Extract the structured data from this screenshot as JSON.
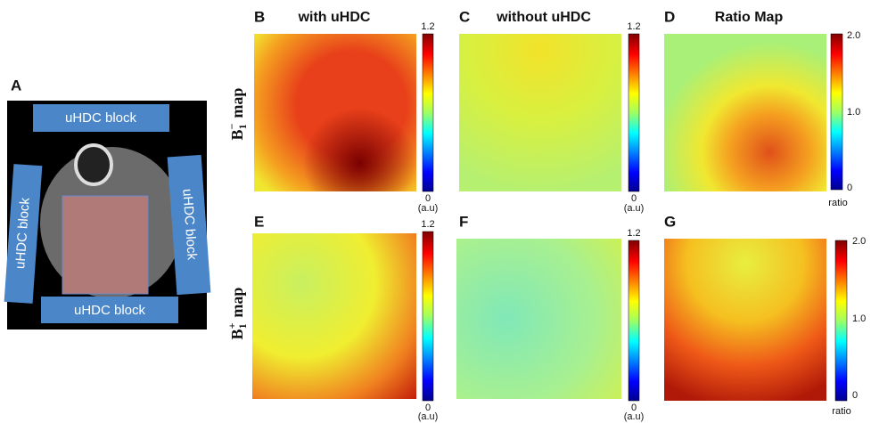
{
  "panel_a": {
    "label": "A",
    "blocks": [
      "uHDC block",
      "uHDC block",
      "uHDC block",
      "uHDC block"
    ]
  },
  "column_titles": [
    "with uHDC",
    "without uHDC",
    "Ratio Map"
  ],
  "row_labels": [
    {
      "symbol": "B",
      "subscript": "1",
      "superscript": "−",
      "word": "map"
    },
    {
      "symbol": "B",
      "subscript": "1",
      "superscript": "+",
      "word": "map"
    }
  ],
  "panels": [
    {
      "letter": "B",
      "colorbar": {
        "max": "1.2",
        "min": "0",
        "unit": "(a.u)"
      }
    },
    {
      "letter": "C",
      "colorbar": {
        "max": "1.2",
        "min": "0",
        "unit": "(a.u)"
      }
    },
    {
      "letter": "D",
      "colorbar": {
        "max": "2.0",
        "mid": "1.0",
        "min": "0",
        "unit": "ratio"
      }
    },
    {
      "letter": "E",
      "colorbar": {
        "max": "1.2",
        "min": "0",
        "unit": "(a.u)"
      }
    },
    {
      "letter": "F",
      "colorbar": {
        "max": "1.2",
        "min": "0",
        "unit": "(a.u)"
      }
    },
    {
      "letter": "G",
      "colorbar": {
        "max": "2.0",
        "mid": "1.0",
        "min": "0",
        "unit": "ratio"
      }
    }
  ]
}
